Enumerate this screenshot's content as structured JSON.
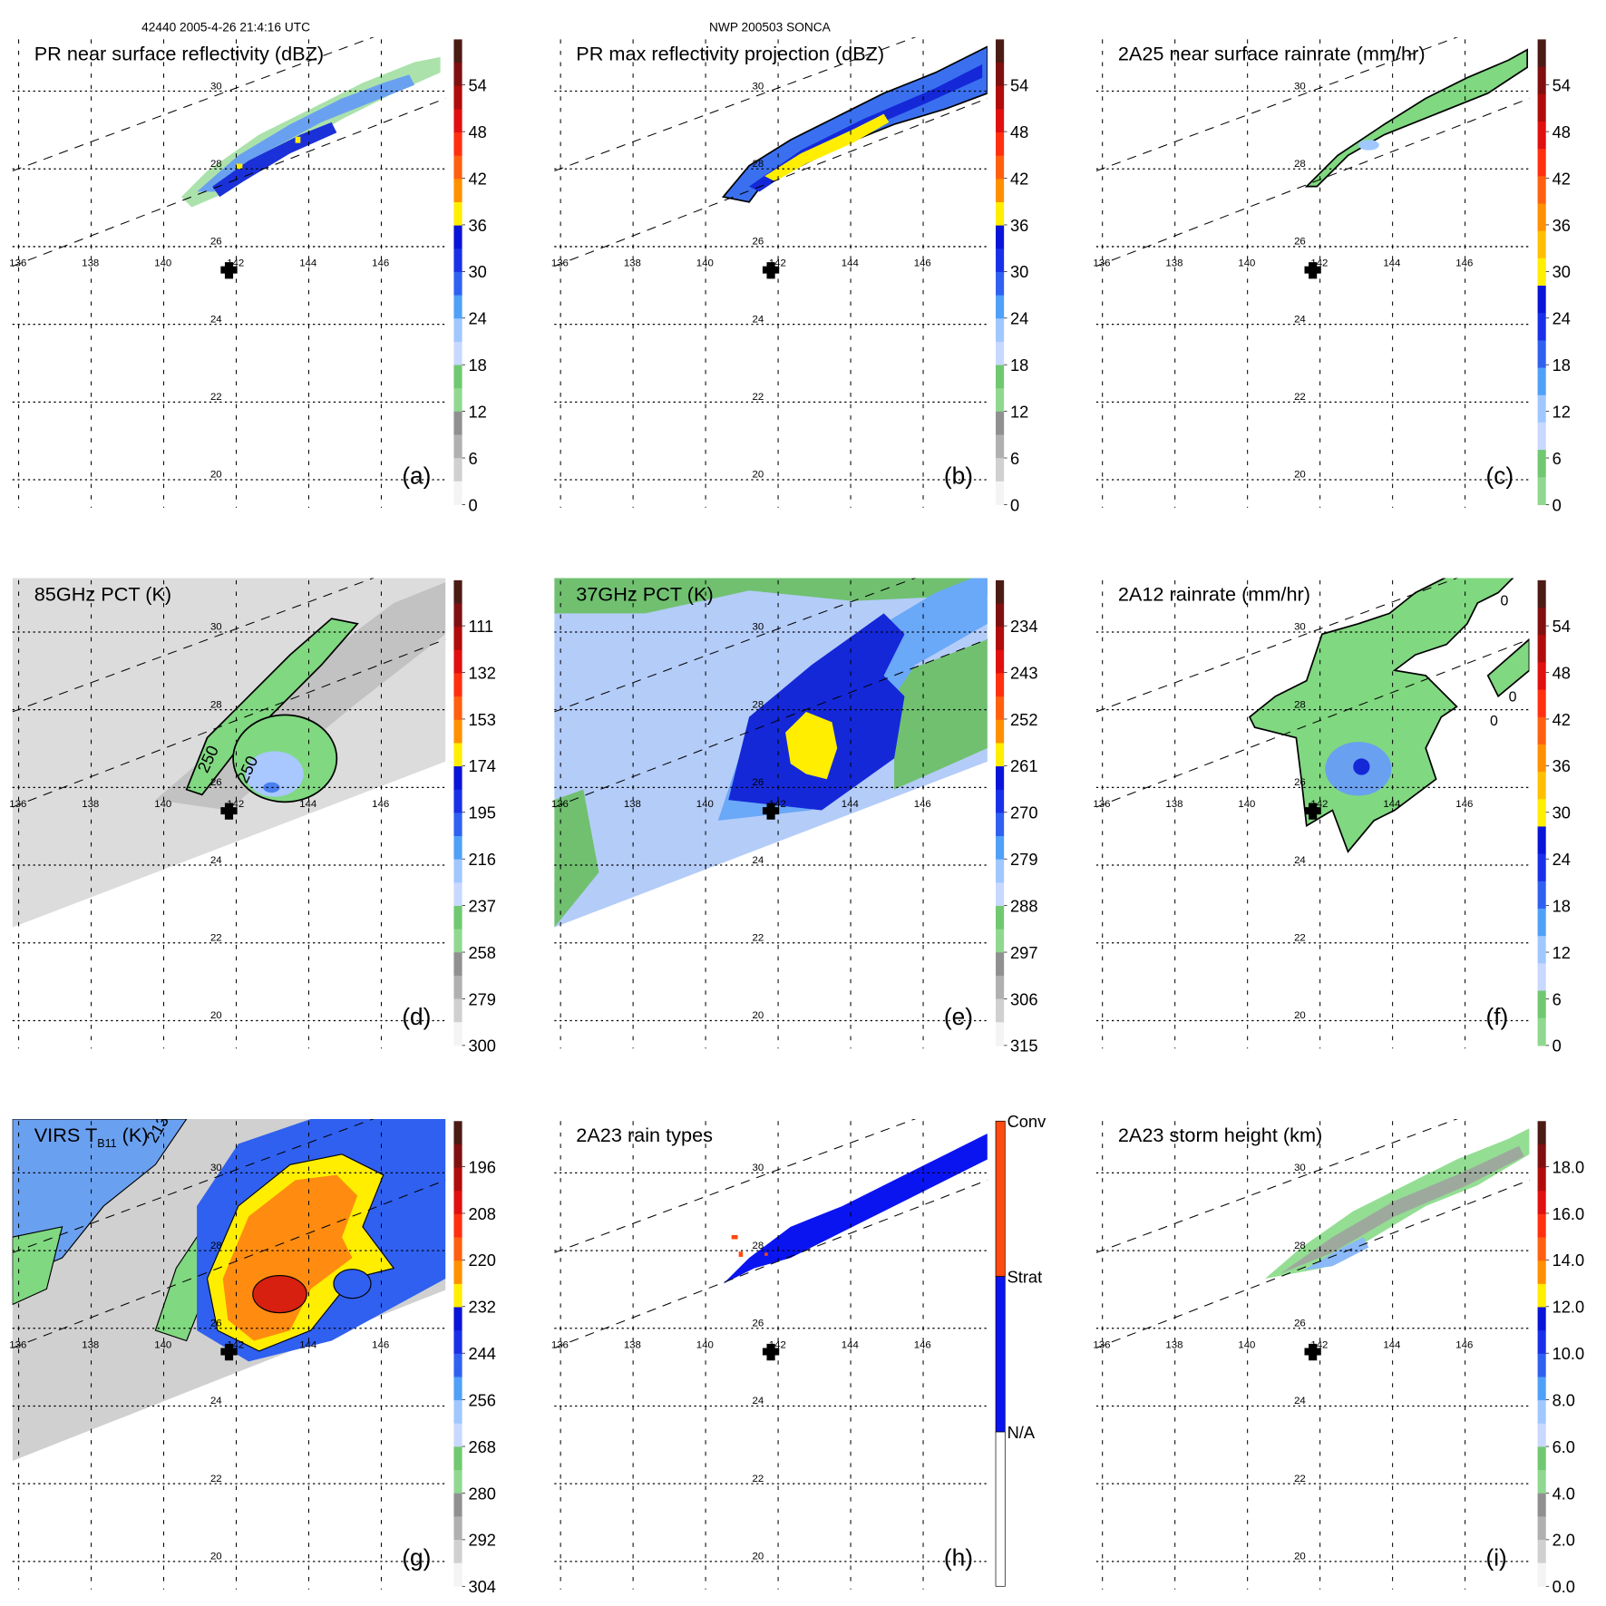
{
  "header": {
    "left": "42440 2005-4-26 21:4:16 UTC",
    "center": "NWP 200503 SONCA"
  },
  "chart_data": [
    {
      "type": "heatmap",
      "letter": "(a)",
      "title": "PR near surface reflectivity (dBZ)",
      "lon_ticks": [
        "136",
        "138",
        "140",
        "142",
        "144",
        "146"
      ],
      "lat_ticks": [
        "30",
        "28",
        "26",
        "24",
        "22",
        "20"
      ],
      "colorbar": {
        "labels": [
          "54",
          "48",
          "42",
          "36",
          "30",
          "24",
          "18",
          "12",
          "6",
          "0"
        ],
        "colors": [
          "#4b1c14",
          "#801010",
          "#b00c0c",
          "#e01010",
          "#ff3010",
          "#ff6010",
          "#ff9000",
          "#ffee00",
          "#0a14d8",
          "#1a30e8",
          "#3060f0",
          "#50a0f8",
          "#a0c8ff",
          "#c8d8ff",
          "#70c870",
          "#90d890",
          "#909090",
          "#b0b0b0",
          "#d0d0d0",
          "#f4f4f4"
        ]
      }
    },
    {
      "type": "heatmap",
      "letter": "(b)",
      "title": "PR max reflectivity projection (dBZ)",
      "lon_ticks": [
        "136",
        "138",
        "140",
        "142",
        "144",
        "146"
      ],
      "lat_ticks": [
        "30",
        "28",
        "26",
        "24",
        "22",
        "20"
      ],
      "colorbar": {
        "labels": [
          "54",
          "48",
          "42",
          "36",
          "30",
          "24",
          "18",
          "12",
          "6",
          "0"
        ],
        "colors": [
          "#4b1c14",
          "#801010",
          "#b00c0c",
          "#e01010",
          "#ff3010",
          "#ff6010",
          "#ff9000",
          "#ffee00",
          "#0a14d8",
          "#1a30e8",
          "#3060f0",
          "#50a0f8",
          "#a0c8ff",
          "#c8d8ff",
          "#70c870",
          "#90d890",
          "#909090",
          "#b0b0b0",
          "#d0d0d0",
          "#f4f4f4"
        ]
      }
    },
    {
      "type": "heatmap",
      "letter": "(c)",
      "title": "2A25 near surface rainrate (mm/hr)",
      "lon_ticks": [
        "136",
        "138",
        "140",
        "142",
        "144",
        "146"
      ],
      "lat_ticks": [
        "30",
        "28",
        "26",
        "24",
        "22",
        "20"
      ],
      "colorbar": {
        "labels": [
          "54",
          "48",
          "42",
          "36",
          "30",
          "24",
          "18",
          "12",
          "6",
          "0"
        ],
        "colors": [
          "#4b1c14",
          "#801010",
          "#b00c0c",
          "#e01010",
          "#ff3010",
          "#ff6010",
          "#ff9000",
          "#ffc000",
          "#ffee00",
          "#0a14d8",
          "#1a30e8",
          "#3060f0",
          "#50a0f8",
          "#a0c8ff",
          "#c8d8ff",
          "#70c870",
          "#90d890"
        ]
      }
    },
    {
      "type": "heatmap",
      "letter": "(d)",
      "title": "85GHz PCT (K)",
      "contour_labels": [
        "250",
        "250"
      ],
      "lon_ticks": [
        "136",
        "138",
        "140",
        "142",
        "144",
        "146"
      ],
      "lat_ticks": [
        "30",
        "28",
        "26",
        "24",
        "22",
        "20"
      ],
      "colorbar": {
        "labels": [
          "111",
          "132",
          "153",
          "174",
          "195",
          "216",
          "237",
          "258",
          "279",
          "300"
        ],
        "colors": [
          "#4b1c14",
          "#801010",
          "#b00c0c",
          "#e01010",
          "#ff3010",
          "#ff6010",
          "#ff9000",
          "#ffee00",
          "#0a14d8",
          "#1a30e8",
          "#3060f0",
          "#50a0f8",
          "#a0c8ff",
          "#c8d8ff",
          "#70c870",
          "#90d890",
          "#909090",
          "#b0b0b0",
          "#d0d0d0",
          "#f4f4f4"
        ]
      }
    },
    {
      "type": "heatmap",
      "letter": "(e)",
      "title": "37GHz PCT (K)",
      "lon_ticks": [
        "136",
        "138",
        "140",
        "142",
        "144",
        "146"
      ],
      "lat_ticks": [
        "30",
        "28",
        "26",
        "24",
        "22",
        "20"
      ],
      "colorbar": {
        "labels": [
          "234",
          "243",
          "252",
          "261",
          "270",
          "279",
          "288",
          "297",
          "306",
          "315"
        ],
        "colors": [
          "#4b1c14",
          "#801010",
          "#b00c0c",
          "#e01010",
          "#ff3010",
          "#ff6010",
          "#ff9000",
          "#ffee00",
          "#0a14d8",
          "#1a30e8",
          "#3060f0",
          "#50a0f8",
          "#a0c8ff",
          "#c8d8ff",
          "#70c870",
          "#90d890",
          "#909090",
          "#b0b0b0",
          "#d0d0d0",
          "#f4f4f4"
        ]
      }
    },
    {
      "type": "heatmap",
      "letter": "(f)",
      "title": "2A12 rainrate (mm/hr)",
      "contour_labels": [
        "0",
        "0",
        "0"
      ],
      "lon_ticks": [
        "136",
        "138",
        "140",
        "142",
        "144",
        "146"
      ],
      "lat_ticks": [
        "30",
        "28",
        "26",
        "24",
        "22",
        "20"
      ],
      "colorbar": {
        "labels": [
          "54",
          "48",
          "42",
          "36",
          "30",
          "24",
          "18",
          "12",
          "6",
          "0"
        ],
        "colors": [
          "#4b1c14",
          "#801010",
          "#b00c0c",
          "#e01010",
          "#ff3010",
          "#ff6010",
          "#ff9000",
          "#ffc000",
          "#ffee00",
          "#0a14d8",
          "#1a30e8",
          "#3060f0",
          "#50a0f8",
          "#a0c8ff",
          "#c8d8ff",
          "#70c870",
          "#90d890"
        ]
      }
    },
    {
      "type": "heatmap",
      "letter": "(g)",
      "title": "VIRS T",
      "title_sub": "B11",
      "title_tail": " (K)",
      "contour_labels": [
        "213"
      ],
      "lon_ticks": [
        "136",
        "138",
        "140",
        "142",
        "144",
        "146"
      ],
      "lat_ticks": [
        "30",
        "28",
        "26",
        "24",
        "22",
        "20"
      ],
      "colorbar": {
        "labels": [
          "196",
          "208",
          "220",
          "232",
          "244",
          "256",
          "268",
          "280",
          "292",
          "304"
        ],
        "colors": [
          "#4b1c14",
          "#801010",
          "#b00c0c",
          "#e01010",
          "#ff3010",
          "#ff6010",
          "#ff9000",
          "#ffee00",
          "#0a14d8",
          "#1a30e8",
          "#3060f0",
          "#50a0f8",
          "#a0c8ff",
          "#c8d8ff",
          "#70c870",
          "#90d890",
          "#909090",
          "#b0b0b0",
          "#d0d0d0",
          "#f4f4f4"
        ]
      }
    },
    {
      "type": "heatmap",
      "letter": "(h)",
      "title": "2A23 rain types",
      "lon_ticks": [
        "136",
        "138",
        "140",
        "142",
        "144",
        "146"
      ],
      "lat_ticks": [
        "30",
        "28",
        "26",
        "24",
        "22",
        "20"
      ],
      "colorbar": {
        "categorical": true,
        "labels": [
          "Conv",
          "Strat",
          "N/A"
        ],
        "colors": [
          "#ff4a10",
          "#0a14f0",
          "#ffffff"
        ]
      }
    },
    {
      "type": "heatmap",
      "letter": "(i)",
      "title": "2A23 storm height (km)",
      "lon_ticks": [
        "136",
        "138",
        "140",
        "142",
        "144",
        "146"
      ],
      "lat_ticks": [
        "30",
        "28",
        "26",
        "24",
        "22",
        "20"
      ],
      "colorbar": {
        "labels": [
          "18.0",
          "16.0",
          "14.0",
          "12.0",
          "10.0",
          "8.0",
          "6.0",
          "4.0",
          "2.0",
          "0.0"
        ],
        "colors": [
          "#4b1c14",
          "#801010",
          "#b00c0c",
          "#e01010",
          "#ff3010",
          "#ff6010",
          "#ff9000",
          "#ffee00",
          "#0a14d8",
          "#1a30e8",
          "#3060f0",
          "#50a0f8",
          "#a0c8ff",
          "#c8d8ff",
          "#70c870",
          "#90d890",
          "#909090",
          "#b0b0b0",
          "#d0d0d0",
          "#f4f4f4"
        ]
      }
    }
  ]
}
